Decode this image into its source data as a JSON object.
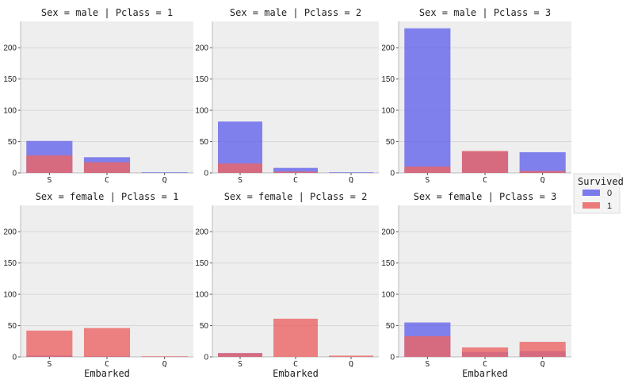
{
  "chart_data": {
    "type": "bar",
    "layout": "facet-grid 2x3, overlaid bars",
    "categories": [
      "S",
      "C",
      "Q"
    ],
    "xlabel": "Embarked",
    "ylabel": "",
    "ylim": [
      0,
      242
    ],
    "yticks": [
      0,
      50,
      100,
      150,
      200
    ],
    "grid": true,
    "legend": {
      "title": "Survived",
      "placement": "right",
      "entries": [
        {
          "label": "0",
          "color": "#6464eb"
        },
        {
          "label": "1",
          "color": "#eb6464"
        }
      ]
    },
    "panels": [
      {
        "title": "Sex = male | Pclass = 1",
        "series": [
          {
            "name": "0",
            "values": [
              51,
              25,
              1
            ]
          },
          {
            "name": "1",
            "values": [
              28,
              17,
              0
            ]
          }
        ]
      },
      {
        "title": "Sex = male | Pclass = 2",
        "series": [
          {
            "name": "0",
            "values": [
              82,
              8,
              1
            ]
          },
          {
            "name": "1",
            "values": [
              15,
              2,
              0
            ]
          }
        ]
      },
      {
        "title": "Sex = male | Pclass = 3",
        "series": [
          {
            "name": "0",
            "values": [
              231,
              34,
              33
            ]
          },
          {
            "name": "1",
            "values": [
              10,
              35,
              3
            ]
          }
        ]
      },
      {
        "title": "Sex = female | Pclass = 1",
        "series": [
          {
            "name": "0",
            "values": [
              2,
              1,
              0
            ]
          },
          {
            "name": "1",
            "values": [
              42,
              46,
              1
            ]
          }
        ]
      },
      {
        "title": "Sex = female | Pclass = 2",
        "series": [
          {
            "name": "0",
            "values": [
              6,
              0,
              0
            ]
          },
          {
            "name": "1",
            "values": [
              6,
              61,
              2
            ]
          }
        ]
      },
      {
        "title": "Sex = female | Pclass = 3",
        "series": [
          {
            "name": "0",
            "values": [
              55,
              8,
              9
            ]
          },
          {
            "name": "1",
            "values": [
              33,
              15,
              24
            ]
          }
        ]
      }
    ]
  }
}
